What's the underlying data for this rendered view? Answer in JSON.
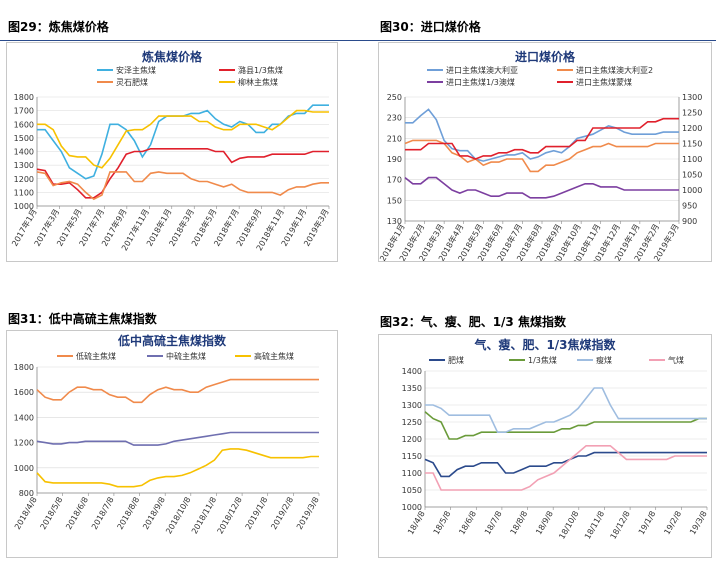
{
  "figures": [
    {
      "caption": "图29：炼焦煤价格"
    },
    {
      "caption": "图30：进口煤价格"
    },
    {
      "caption": "图31：低中高硫主焦煤指数"
    },
    {
      "caption": "图32：气、瘦、肥、1/3 焦煤指数"
    }
  ],
  "chart_data": [
    {
      "type": "line",
      "title": "炼焦煤价格",
      "ylim": [
        1000,
        1800
      ],
      "yticks": [
        1000,
        1100,
        1200,
        1300,
        1400,
        1500,
        1600,
        1700,
        1800
      ],
      "xticks": [
        "2017年1月",
        "2017年3月",
        "2017年5月",
        "2017年7月",
        "2017年9月",
        "2017年11月",
        "2018年1月",
        "2018年3月",
        "2018年5月",
        "2018年7月",
        "2018年9月",
        "2018年11月",
        "2019年1月",
        "2019年3月"
      ],
      "legend_position": "top",
      "grid": true,
      "series": [
        {
          "name": "安泽主焦煤",
          "color": "#3fb0e0",
          "values": [
            1560,
            1560,
            1480,
            1400,
            1280,
            1240,
            1200,
            1220,
            1380,
            1600,
            1600,
            1560,
            1480,
            1360,
            1450,
            1620,
            1660,
            1660,
            1660,
            1680,
            1680,
            1700,
            1640,
            1600,
            1580,
            1620,
            1600,
            1540,
            1540,
            1600,
            1600,
            1660,
            1680,
            1680,
            1740,
            1740,
            1740
          ]
        },
        {
          "name": "潞县1/3焦煤",
          "color": "#e0202c",
          "values": [
            1270,
            1260,
            1160,
            1160,
            1170,
            1120,
            1060,
            1060,
            1100,
            1200,
            1280,
            1380,
            1400,
            1400,
            1420,
            1420,
            1420,
            1420,
            1420,
            1420,
            1420,
            1420,
            1400,
            1400,
            1320,
            1350,
            1360,
            1360,
            1360,
            1380,
            1380,
            1380,
            1380,
            1380,
            1400,
            1400,
            1400
          ]
        },
        {
          "name": "灵石肥煤",
          "color": "#f08a4b",
          "values": [
            1250,
            1240,
            1150,
            1170,
            1180,
            1160,
            1100,
            1050,
            1080,
            1250,
            1250,
            1250,
            1180,
            1180,
            1240,
            1250,
            1240,
            1240,
            1240,
            1200,
            1180,
            1180,
            1160,
            1140,
            1160,
            1120,
            1100,
            1100,
            1100,
            1100,
            1080,
            1120,
            1140,
            1140,
            1160,
            1170,
            1170
          ]
        },
        {
          "name": "柳林主焦煤",
          "color": "#f7c100",
          "values": [
            1600,
            1600,
            1560,
            1440,
            1370,
            1360,
            1360,
            1300,
            1280,
            1350,
            1450,
            1550,
            1560,
            1560,
            1600,
            1660,
            1660,
            1660,
            1660,
            1660,
            1620,
            1620,
            1580,
            1560,
            1560,
            1600,
            1600,
            1600,
            1580,
            1560,
            1600,
            1650,
            1700,
            1700,
            1690,
            1690,
            1690
          ]
        }
      ]
    },
    {
      "type": "line",
      "title": "进口煤价格",
      "ylim": [
        130,
        250
      ],
      "yticks": [
        130,
        150,
        170,
        190,
        210,
        230,
        250
      ],
      "y2lim": [
        900,
        1300
      ],
      "y2ticks": [
        900,
        950,
        1000,
        1050,
        1100,
        1150,
        1200,
        1250,
        1300
      ],
      "xticks": [
        "2018年1月",
        "2018年2月",
        "2018年3月",
        "2018年4月",
        "2018年5月",
        "2018年6月",
        "2018年7月",
        "2018年8月",
        "2018年9月",
        "2018年10月",
        "2018年11月",
        "2018年12月",
        "2019年1月",
        "2019年2月",
        "2019年3月"
      ],
      "legend_position": "top",
      "grid": true,
      "series": [
        {
          "name": "进口主焦煤澳大利亚",
          "color": "#6f9fd8",
          "axis": "left",
          "values": [
            225,
            225,
            232,
            238,
            228,
            208,
            200,
            198,
            198,
            190,
            188,
            190,
            192,
            194,
            194,
            196,
            190,
            192,
            196,
            198,
            196,
            202,
            210,
            212,
            214,
            218,
            222,
            220,
            216,
            214,
            214,
            214,
            214,
            216,
            216,
            216
          ]
        },
        {
          "name": "进口主焦煤澳大利亚2",
          "color": "#f08a4b",
          "axis": "right",
          "values": [
            1150,
            1160,
            1160,
            1160,
            1160,
            1150,
            1120,
            1110,
            1090,
            1100,
            1080,
            1090,
            1090,
            1100,
            1100,
            1100,
            1060,
            1060,
            1080,
            1080,
            1090,
            1100,
            1120,
            1130,
            1140,
            1140,
            1150,
            1140,
            1140,
            1140,
            1140,
            1140,
            1150,
            1150,
            1150,
            1150
          ]
        },
        {
          "name": "进口主焦煤1/3澳煤",
          "color": "#7c3fa0",
          "axis": "right",
          "values": [
            1040,
            1020,
            1020,
            1040,
            1040,
            1020,
            1000,
            990,
            1000,
            1000,
            990,
            980,
            980,
            990,
            990,
            990,
            975,
            975,
            975,
            980,
            990,
            1000,
            1010,
            1020,
            1020,
            1010,
            1010,
            1010,
            1000,
            1000,
            1000,
            1000,
            1000,
            1000,
            1000,
            1000
          ]
        },
        {
          "name": "进口主焦煤蒙煤",
          "color": "#e0202c",
          "axis": "right",
          "values": [
            1130,
            1130,
            1130,
            1150,
            1150,
            1150,
            1150,
            1110,
            1110,
            1100,
            1110,
            1110,
            1120,
            1120,
            1130,
            1130,
            1120,
            1120,
            1140,
            1140,
            1140,
            1140,
            1160,
            1160,
            1200,
            1200,
            1200,
            1200,
            1200,
            1200,
            1200,
            1220,
            1220,
            1230,
            1230,
            1230
          ]
        }
      ]
    },
    {
      "type": "line",
      "title": "低中高硫主焦煤指数",
      "ylim": [
        800,
        1800
      ],
      "yticks": [
        800,
        1000,
        1200,
        1400,
        1600,
        1800
      ],
      "xticks": [
        "2018/4/8",
        "2018/5/8",
        "2018/6/8",
        "2018/7/8",
        "2018/8/8",
        "2018/9/8",
        "2018/10/8",
        "2018/11/8",
        "2018/12/8",
        "2019/1/8",
        "2019/2/8",
        "2019/3/8"
      ],
      "legend_position": "top",
      "grid": true,
      "series": [
        {
          "name": "低硫主焦煤",
          "color": "#f08a4b",
          "values": [
            1620,
            1560,
            1540,
            1540,
            1600,
            1640,
            1640,
            1620,
            1620,
            1580,
            1560,
            1560,
            1520,
            1520,
            1580,
            1620,
            1640,
            1620,
            1620,
            1600,
            1600,
            1640,
            1660,
            1680,
            1700,
            1700,
            1700,
            1700,
            1700,
            1700,
            1700,
            1700,
            1700,
            1700,
            1700,
            1700
          ]
        },
        {
          "name": "中硫主焦煤",
          "color": "#6f6fb0",
          "values": [
            1210,
            1200,
            1190,
            1190,
            1200,
            1200,
            1210,
            1210,
            1210,
            1210,
            1210,
            1210,
            1180,
            1180,
            1180,
            1180,
            1190,
            1210,
            1220,
            1230,
            1240,
            1250,
            1260,
            1270,
            1280,
            1280,
            1280,
            1280,
            1280,
            1280,
            1280,
            1280,
            1280,
            1280,
            1280,
            1280
          ]
        },
        {
          "name": "高硫主焦煤",
          "color": "#f7c100",
          "values": [
            960,
            890,
            880,
            880,
            880,
            880,
            880,
            880,
            880,
            870,
            850,
            850,
            850,
            860,
            900,
            920,
            930,
            930,
            940,
            960,
            990,
            1020,
            1060,
            1140,
            1150,
            1150,
            1140,
            1120,
            1100,
            1080,
            1080,
            1080,
            1080,
            1080,
            1090,
            1090
          ]
        }
      ]
    },
    {
      "type": "line",
      "title": "气、瘦、肥、1/3焦煤指数",
      "ylim": [
        1000,
        1400
      ],
      "yticks": [
        1000,
        1050,
        1100,
        1150,
        1200,
        1250,
        1300,
        1350,
        1400
      ],
      "xticks": [
        "18/4/8",
        "18/5/8",
        "18/6/8",
        "18/7/8",
        "18/8/8",
        "18/9/8",
        "18/10/8",
        "18/11/8",
        "18/12/8",
        "19/1/8",
        "19/2/8",
        "19/3/8"
      ],
      "legend_position": "top",
      "grid": true,
      "series": [
        {
          "name": "肥煤",
          "color": "#2b4a8c",
          "values": [
            1140,
            1130,
            1090,
            1090,
            1110,
            1120,
            1120,
            1130,
            1130,
            1130,
            1100,
            1100,
            1110,
            1120,
            1120,
            1120,
            1130,
            1130,
            1140,
            1150,
            1150,
            1160,
            1160,
            1160,
            1160,
            1160,
            1160,
            1160,
            1160,
            1160,
            1160,
            1160,
            1160,
            1160,
            1160,
            1160
          ]
        },
        {
          "name": "1/3焦煤",
          "color": "#6a9b3a",
          "values": [
            1280,
            1260,
            1250,
            1200,
            1200,
            1210,
            1210,
            1220,
            1220,
            1220,
            1220,
            1220,
            1220,
            1220,
            1220,
            1220,
            1220,
            1230,
            1230,
            1240,
            1240,
            1250,
            1250,
            1250,
            1250,
            1250,
            1250,
            1250,
            1250,
            1250,
            1250,
            1250,
            1250,
            1250,
            1260,
            1260
          ]
        },
        {
          "name": "瘦煤",
          "color": "#9fbde0",
          "values": [
            1300,
            1300,
            1290,
            1270,
            1270,
            1270,
            1270,
            1270,
            1270,
            1220,
            1220,
            1230,
            1230,
            1230,
            1240,
            1250,
            1250,
            1260,
            1270,
            1290,
            1320,
            1350,
            1350,
            1300,
            1260,
            1260,
            1260,
            1260,
            1260,
            1260,
            1260,
            1260,
            1260,
            1260,
            1260,
            1260
          ]
        },
        {
          "name": "气煤",
          "color": "#f2a0b4",
          "values": [
            1100,
            1100,
            1050,
            1050,
            1050,
            1050,
            1050,
            1050,
            1050,
            1050,
            1050,
            1050,
            1050,
            1060,
            1080,
            1090,
            1100,
            1120,
            1140,
            1160,
            1180,
            1180,
            1180,
            1180,
            1160,
            1140,
            1140,
            1140,
            1140,
            1140,
            1140,
            1150,
            1150,
            1150,
            1150,
            1150
          ]
        }
      ]
    }
  ]
}
